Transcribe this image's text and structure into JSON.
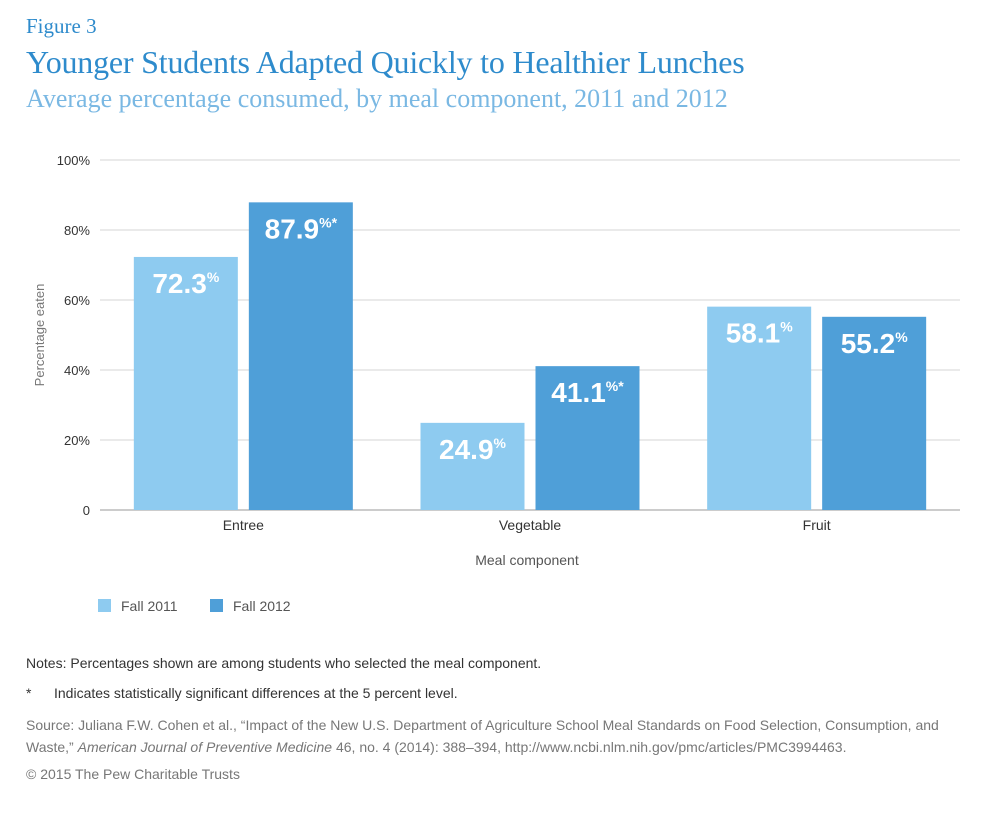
{
  "header": {
    "figure_label": "Figure 3",
    "title": "Younger Students Adapted Quickly to Healthier Lunches",
    "subtitle": "Average percentage consumed, by meal component, 2011 and 2012"
  },
  "chart_data": {
    "type": "bar",
    "title": "Younger Students Adapted Quickly to Healthier Lunches",
    "subtitle": "Average percentage consumed, by meal component, 2011 and 2012",
    "xlabel": "Meal component",
    "ylabel": "Percentage eaten",
    "ylim": [
      0,
      100
    ],
    "yticks": [
      0,
      20,
      40,
      60,
      80,
      100
    ],
    "ytick_labels": [
      "0",
      "20%",
      "40%",
      "60%",
      "80%",
      "100%"
    ],
    "categories": [
      "Entree",
      "Vegetable",
      "Fruit"
    ],
    "series": [
      {
        "name": "Fall 2011",
        "color": "#8ecbf0",
        "values": [
          72.3,
          24.9,
          58.1
        ],
        "labels": [
          "72.3",
          "24.9",
          "58.1"
        ],
        "significant": [
          false,
          false,
          false
        ]
      },
      {
        "name": "Fall 2012",
        "color": "#4f9fd8",
        "values": [
          87.9,
          41.1,
          55.2
        ],
        "labels": [
          "87.9",
          "41.1",
          "55.2"
        ],
        "significant": [
          true,
          true,
          false
        ]
      }
    ],
    "grid": true,
    "legend_position": "bottom-left"
  },
  "notes": {
    "line1": "Notes: Percentages shown are among students who selected the meal component.",
    "star": "*",
    "line2": "Indicates statistically significant differences at the 5 percent level."
  },
  "source": {
    "prefix": "Source: Juliana F.W. Cohen et al., “Impact of the New U.S. Department of Agriculture School Meal Standards on Food Selection, Consumption, and Waste,” ",
    "journal": "American Journal of Preventive Medicine",
    "suffix": " 46, no. 4 (2014): 388–394, http://www.ncbi.nlm.nih.gov/pmc/articles/PMC3994463."
  },
  "copyright": "© 2015 The Pew Charitable Trusts"
}
